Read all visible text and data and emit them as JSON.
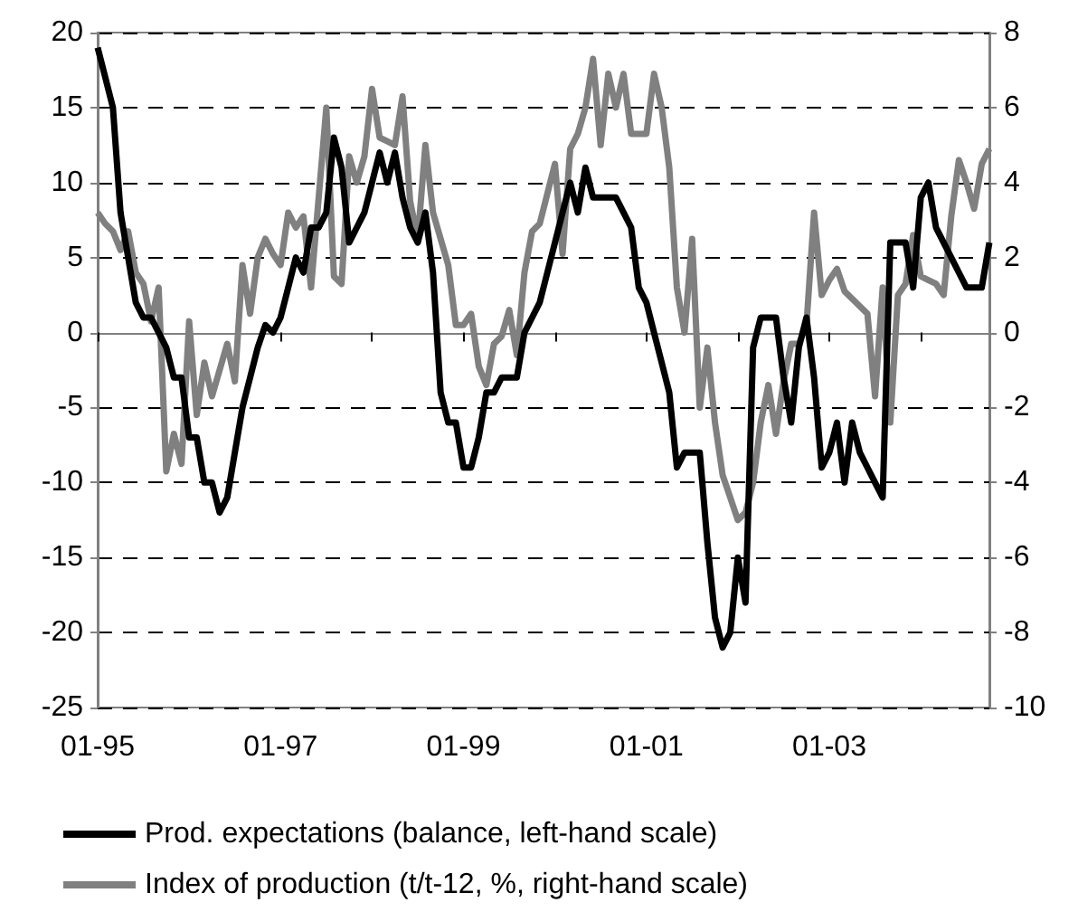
{
  "chart_data": {
    "type": "line",
    "categories": [
      "01-95",
      null,
      null,
      null,
      null,
      null,
      null,
      null,
      null,
      null,
      null,
      null,
      null,
      null,
      null,
      null,
      null,
      null,
      null,
      null,
      null,
      null,
      null,
      null,
      "01-97",
      null,
      null,
      null,
      null,
      null,
      null,
      null,
      null,
      null,
      null,
      null,
      null,
      null,
      null,
      null,
      null,
      null,
      null,
      null,
      null,
      null,
      null,
      null,
      "01-99",
      null,
      null,
      null,
      null,
      null,
      null,
      null,
      null,
      null,
      null,
      null,
      null,
      null,
      null,
      null,
      null,
      null,
      null,
      null,
      null,
      null,
      null,
      null,
      "01-01",
      null,
      null,
      null,
      null,
      null,
      null,
      null,
      null,
      null,
      null,
      null,
      null,
      null,
      null,
      null,
      null,
      null,
      null,
      null,
      null,
      null,
      null,
      null,
      "01-03",
      null,
      null,
      null,
      null,
      null,
      null,
      null,
      null,
      null,
      null,
      null,
      null,
      null,
      null,
      null,
      null,
      null,
      null,
      null,
      null,
      null
    ],
    "series": [
      {
        "name": "Prod. expectations (balance, left-hand scale)",
        "color": "#000000",
        "values": [
          19,
          17,
          15,
          8,
          5,
          2,
          1,
          1,
          0,
          -1,
          -3,
          -3,
          -7,
          -7,
          -10,
          -10,
          -12,
          -11,
          -8,
          -5,
          -3,
          -1,
          0.5,
          0,
          1,
          3,
          5,
          4,
          7,
          7,
          8,
          13,
          11,
          6,
          7,
          8,
          10,
          12,
          10,
          12,
          9,
          7,
          6,
          8,
          4,
          -4,
          -6,
          -6,
          -9,
          -9,
          -7,
          -4,
          -4,
          -3,
          -3,
          -3,
          0,
          1,
          2,
          4,
          6,
          8,
          10,
          8,
          11,
          9,
          9,
          9,
          9,
          8,
          7,
          3,
          2,
          0,
          -2,
          -4,
          -9,
          -8,
          -8,
          -8,
          -14,
          -19,
          -21,
          -20,
          -15,
          -18,
          -1,
          1,
          1,
          1,
          -3,
          -6,
          -1,
          1,
          -3,
          -9,
          -8,
          -6,
          -10,
          -6,
          -8,
          -9,
          -10,
          -11,
          6,
          6,
          6,
          3,
          9,
          10,
          7,
          6,
          5,
          4,
          3,
          3,
          3,
          6
        ]
      },
      {
        "name": "Index of production (t/t-12, %, right-hand scale)",
        "color": "#808080",
        "axis": "y2",
        "values": [
          3.2,
          2.9,
          2.7,
          2.2,
          2.7,
          1.6,
          1.3,
          0.3,
          1.2,
          -3.7,
          -2.7,
          -3.5,
          0.3,
          -2.2,
          -0.8,
          -1.7,
          -1,
          -0.3,
          -1.3,
          1.8,
          0.5,
          2,
          2.5,
          2.1,
          1.8,
          3.2,
          2.8,
          3.1,
          1.2,
          3.6,
          6,
          1.5,
          1.3,
          4.7,
          4,
          4.7,
          6.5,
          5.2,
          5.1,
          5,
          6.3,
          3.5,
          2.5,
          5,
          3.2,
          2.5,
          1.8,
          0.2,
          0.2,
          0.5,
          -0.9,
          -1.4,
          -0.3,
          -0.1,
          0.6,
          -0.6,
          1.6,
          2.7,
          2.9,
          3.7,
          4.5,
          2.1,
          4.9,
          5.3,
          6,
          7.3,
          5,
          6.9,
          6,
          6.9,
          5.3,
          5.3,
          5.3,
          6.9,
          6,
          4.4,
          1.2,
          0,
          2.5,
          -2,
          -0.4,
          -2.4,
          -3.8,
          -4.4,
          -5,
          -4.8,
          -4,
          -2.4,
          -1.4,
          -2.7,
          -1.3,
          -0.3,
          -0.3,
          0.2,
          3.2,
          1,
          1.4,
          1.7,
          1.1,
          0.9,
          0.7,
          0.5,
          -1.7,
          1.2,
          -2.4,
          1,
          1.3,
          2.6,
          1.5,
          1.4,
          1.3,
          1,
          3.1,
          4.6,
          4,
          3.3,
          4.5,
          4.9
        ]
      }
    ],
    "ylim": [
      -25,
      20
    ],
    "yticks": [
      -25,
      -20,
      -15,
      -10,
      -5,
      0,
      5,
      10,
      15,
      20
    ],
    "y2lim": [
      -10,
      8
    ],
    "y2ticks": [
      -10,
      -8,
      -6,
      -4,
      -2,
      0,
      2,
      4,
      6,
      8
    ],
    "grid": "y",
    "legend": "bottom",
    "marker": "none",
    "line_style": "solid"
  }
}
